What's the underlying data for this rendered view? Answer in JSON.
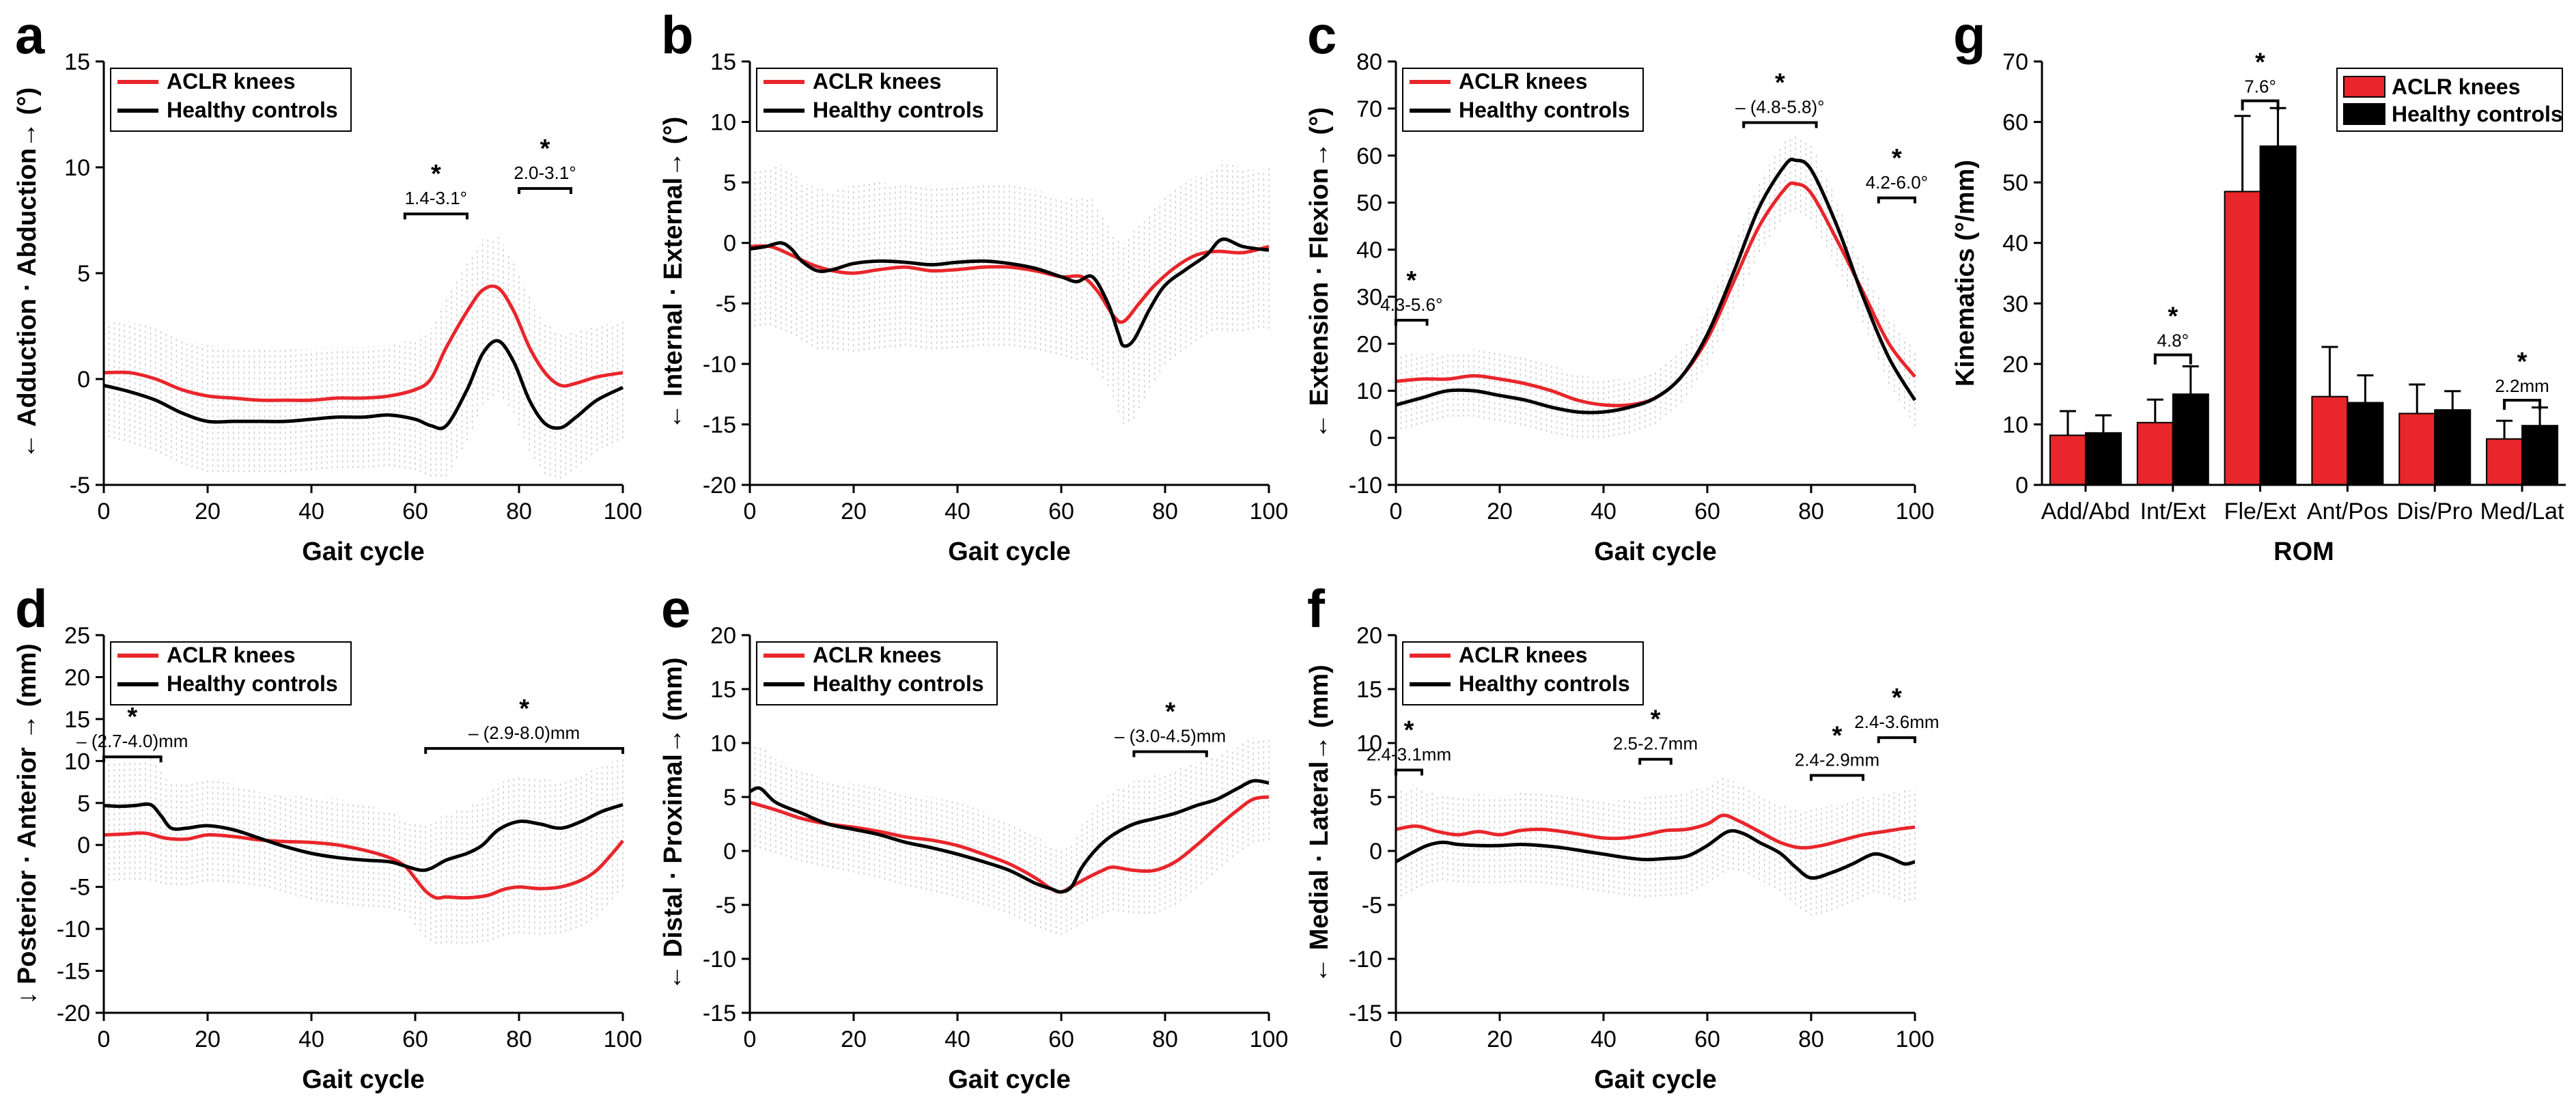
{
  "figure": {
    "series_legend": [
      "ACLR knees",
      "Healthy controls"
    ],
    "colors": {
      "aclr": "#e8262b",
      "hc": "#000000",
      "band": "#c9c9c9"
    }
  },
  "chart_data": [
    {
      "id": "a",
      "panel_label": "a",
      "type": "line",
      "xlabel": "Gait cycle",
      "ylabel": "← Adduction · Abduction→ (°)",
      "xlim": [
        0,
        100
      ],
      "ylim": [
        -5,
        15
      ],
      "xticks": [
        0,
        20,
        40,
        60,
        80,
        100
      ],
      "yticks": [
        -5,
        0,
        5,
        10,
        15
      ],
      "band_sd": 2.4,
      "series": [
        {
          "name": "ACLR knees",
          "x": [
            0,
            5,
            10,
            15,
            20,
            25,
            30,
            35,
            40,
            45,
            50,
            55,
            60,
            63,
            66,
            70,
            73,
            76,
            79,
            82,
            85,
            88,
            91,
            95,
            100
          ],
          "y": [
            0.3,
            0.3,
            0,
            -0.5,
            -0.8,
            -0.9,
            -1.0,
            -1.0,
            -1.0,
            -0.9,
            -0.9,
            -0.8,
            -0.5,
            0,
            1.5,
            3.2,
            4.2,
            4.3,
            3.2,
            1.5,
            0.3,
            -0.3,
            -0.2,
            0.1,
            0.3
          ]
        },
        {
          "name": "Healthy controls",
          "x": [
            0,
            5,
            10,
            15,
            20,
            25,
            30,
            35,
            40,
            45,
            50,
            55,
            60,
            63,
            66,
            70,
            73,
            76,
            79,
            82,
            85,
            88,
            91,
            95,
            100
          ],
          "y": [
            -0.3,
            -0.6,
            -1.0,
            -1.6,
            -2.0,
            -2.0,
            -2.0,
            -2.0,
            -1.9,
            -1.8,
            -1.8,
            -1.7,
            -1.9,
            -2.2,
            -2.2,
            -0.5,
            1.2,
            1.8,
            0.8,
            -1.0,
            -2.1,
            -2.3,
            -1.8,
            -1.0,
            -0.4
          ]
        }
      ],
      "annotations": [
        {
          "star": "*",
          "label": "1.4-3.1°",
          "x0": 58,
          "x1": 70,
          "y": 7.8
        },
        {
          "star": "*",
          "label": "2.0-3.1°",
          "x0": 80,
          "x1": 90,
          "y": 9.0
        }
      ]
    },
    {
      "id": "b",
      "panel_label": "b",
      "type": "line",
      "xlabel": "Gait cycle",
      "ylabel": "← Internal · External→ (°)",
      "xlim": [
        0,
        100
      ],
      "ylim": [
        -20,
        15
      ],
      "xticks": [
        0,
        20,
        40,
        60,
        80,
        100
      ],
      "yticks": [
        -20,
        -15,
        -10,
        -5,
        0,
        5,
        10,
        15
      ],
      "band_sd": 6.5,
      "series": [
        {
          "name": "ACLR knees",
          "x": [
            0,
            4,
            8,
            12,
            16,
            20,
            25,
            30,
            35,
            40,
            45,
            50,
            55,
            60,
            64,
            67,
            70,
            72,
            75,
            78,
            82,
            86,
            90,
            95,
            100
          ],
          "y": [
            -0.3,
            -0.3,
            -1.0,
            -1.8,
            -2.3,
            -2.5,
            -2.2,
            -2.0,
            -2.3,
            -2.2,
            -2.0,
            -2.0,
            -2.3,
            -2.8,
            -2.8,
            -4.0,
            -6.0,
            -6.5,
            -5.0,
            -3.5,
            -2.0,
            -1.0,
            -0.7,
            -0.8,
            -0.3
          ]
        },
        {
          "name": "Healthy controls",
          "x": [
            0,
            3,
            6,
            8,
            10,
            13,
            16,
            20,
            25,
            30,
            35,
            40,
            45,
            50,
            55,
            60,
            63,
            66,
            69,
            71,
            72,
            74,
            77,
            80,
            84,
            88,
            91,
            95,
            100
          ],
          "y": [
            -0.5,
            -0.3,
            0,
            -0.5,
            -1.5,
            -2.3,
            -2.2,
            -1.7,
            -1.5,
            -1.6,
            -1.8,
            -1.6,
            -1.5,
            -1.7,
            -2.1,
            -2.8,
            -3.2,
            -2.8,
            -5.0,
            -7.5,
            -8.5,
            -8.0,
            -5.5,
            -3.5,
            -2.2,
            -1.0,
            0.3,
            -0.3,
            -0.6
          ]
        }
      ],
      "annotations": []
    },
    {
      "id": "c",
      "panel_label": "c",
      "type": "line",
      "xlabel": "Gait cycle",
      "ylabel": "← Extension · Flexion→ (°)",
      "xlim": [
        0,
        100
      ],
      "ylim": [
        -10,
        80
      ],
      "xticks": [
        0,
        20,
        40,
        60,
        80,
        100
      ],
      "yticks": [
        -10,
        0,
        10,
        20,
        30,
        40,
        50,
        60,
        70,
        80
      ],
      "band_sd": 5.5,
      "series": [
        {
          "name": "ACLR knees",
          "x": [
            0,
            5,
            10,
            15,
            20,
            25,
            30,
            35,
            40,
            45,
            50,
            55,
            60,
            65,
            70,
            75,
            77,
            80,
            85,
            90,
            95,
            100
          ],
          "y": [
            12,
            12.5,
            12.5,
            13.2,
            12.5,
            11.5,
            10,
            8,
            7,
            7,
            8.5,
            13,
            21,
            33,
            45,
            53,
            54,
            52,
            42,
            31,
            20,
            13
          ]
        },
        {
          "name": "Healthy controls",
          "x": [
            0,
            5,
            10,
            15,
            20,
            25,
            30,
            35,
            40,
            45,
            50,
            55,
            60,
            65,
            70,
            75,
            77,
            80,
            85,
            90,
            95,
            100
          ],
          "y": [
            7,
            8.5,
            10,
            10,
            9,
            8,
            6.5,
            5.5,
            5.5,
            6.5,
            8.5,
            13,
            22,
            35,
            49,
            58,
            59,
            57,
            45,
            30,
            17,
            8
          ]
        }
      ],
      "annotations": [
        {
          "star": "*",
          "label": "4.3-5.6°",
          "x0": 0,
          "x1": 6,
          "y": 25
        },
        {
          "star": "*",
          "label": "– (4.8-5.8)°",
          "x0": 67,
          "x1": 81,
          "y": 67
        },
        {
          "star": "*",
          "label": "4.2-6.0°",
          "x0": 93,
          "x1": 100,
          "y": 51
        }
      ]
    },
    {
      "id": "d",
      "panel_label": "d",
      "type": "line",
      "xlabel": "Gait cycle",
      "ylabel": "↓ Posterior · Anterior → (mm)",
      "xlim": [
        0,
        100
      ],
      "ylim": [
        -20,
        25
      ],
      "xticks": [
        0,
        20,
        40,
        60,
        80,
        100
      ],
      "yticks": [
        -20,
        -15,
        -10,
        -5,
        0,
        5,
        10,
        15,
        20,
        25
      ],
      "band_sd": 5.5,
      "series": [
        {
          "name": "ACLR knees",
          "x": [
            0,
            4,
            8,
            12,
            16,
            20,
            25,
            30,
            35,
            40,
            45,
            50,
            55,
            58,
            60,
            62,
            64,
            66,
            70,
            74,
            77,
            80,
            84,
            88,
            92,
            95,
            98,
            100
          ],
          "y": [
            1.2,
            1.3,
            1.4,
            0.8,
            0.7,
            1.2,
            1.0,
            0.6,
            0.4,
            0.3,
            0,
            -0.6,
            -1.5,
            -2.5,
            -4.0,
            -5.5,
            -6.3,
            -6.2,
            -6.3,
            -6.0,
            -5.3,
            -5.0,
            -5.2,
            -5.0,
            -4.2,
            -3.0,
            -1.0,
            0.5
          ]
        },
        {
          "name": "Healthy controls",
          "x": [
            0,
            3,
            6,
            9,
            11,
            13,
            16,
            20,
            25,
            30,
            35,
            40,
            45,
            50,
            55,
            58,
            61,
            63,
            66,
            70,
            73,
            76,
            80,
            84,
            88,
            92,
            96,
            100
          ],
          "y": [
            4.7,
            4.6,
            4.7,
            4.8,
            3.5,
            2.0,
            2.0,
            2.3,
            1.8,
            0.8,
            -0.2,
            -1.0,
            -1.5,
            -1.8,
            -2.0,
            -2.5,
            -3.0,
            -2.8,
            -1.8,
            -1.0,
            0,
            1.8,
            2.8,
            2.5,
            2.0,
            2.8,
            4.0,
            4.8
          ]
        }
      ],
      "annotations": [
        {
          "star": "*",
          "label": "– (2.7-4.0)mm",
          "x0": 0,
          "x1": 11,
          "y": 10.5
        },
        {
          "star": "*",
          "label": "– (2.9-8.0)mm",
          "x0": 62,
          "x1": 100,
          "y": 11.5
        }
      ]
    },
    {
      "id": "e",
      "panel_label": "e",
      "type": "line",
      "xlabel": "Gait cycle",
      "ylabel": "← Distal · Proximal→ (mm)",
      "xlim": [
        0,
        100
      ],
      "ylim": [
        -15,
        20
      ],
      "xticks": [
        0,
        20,
        40,
        60,
        80,
        100
      ],
      "yticks": [
        -15,
        -10,
        -5,
        0,
        5,
        10,
        15,
        20
      ],
      "band_sd": 4.0,
      "series": [
        {
          "name": "ACLR knees",
          "x": [
            0,
            5,
            10,
            15,
            20,
            25,
            30,
            35,
            40,
            45,
            50,
            55,
            58,
            60,
            62,
            65,
            68,
            70,
            74,
            78,
            82,
            86,
            90,
            94,
            97,
            100
          ],
          "y": [
            4.5,
            3.8,
            3.0,
            2.5,
            2.2,
            1.8,
            1.3,
            1.0,
            0.5,
            -0.3,
            -1.2,
            -2.5,
            -3.5,
            -3.8,
            -3.3,
            -2.5,
            -1.8,
            -1.5,
            -1.8,
            -1.8,
            -1.0,
            0.5,
            2.2,
            3.8,
            4.8,
            5.0
          ]
        },
        {
          "name": "Healthy controls",
          "x": [
            0,
            2,
            5,
            10,
            15,
            20,
            25,
            30,
            35,
            40,
            45,
            50,
            55,
            58,
            60,
            62,
            64,
            67,
            70,
            74,
            78,
            82,
            86,
            90,
            94,
            97,
            100
          ],
          "y": [
            5.5,
            5.8,
            4.5,
            3.5,
            2.5,
            2.0,
            1.5,
            0.8,
            0.3,
            -0.3,
            -1.0,
            -1.8,
            -3.0,
            -3.5,
            -3.8,
            -3.3,
            -1.5,
            0.3,
            1.5,
            2.5,
            3.0,
            3.5,
            4.2,
            4.8,
            5.8,
            6.5,
            6.3
          ]
        }
      ],
      "annotations": [
        {
          "star": "*",
          "label": "– (3.0-4.5)mm",
          "x0": 74,
          "x1": 88,
          "y": 9.2
        }
      ]
    },
    {
      "id": "f",
      "panel_label": "f",
      "type": "line",
      "xlabel": "Gait cycle",
      "ylabel": "← Medial · Lateral→ (mm)",
      "xlim": [
        0,
        100
      ],
      "ylim": [
        -15,
        20
      ],
      "xticks": [
        0,
        20,
        40,
        60,
        80,
        100
      ],
      "yticks": [
        -15,
        -10,
        -5,
        0,
        5,
        10,
        15,
        20
      ],
      "band_sd": 3.5,
      "series": [
        {
          "name": "ACLR knees",
          "x": [
            0,
            4,
            8,
            12,
            16,
            20,
            24,
            28,
            32,
            36,
            40,
            44,
            48,
            52,
            56,
            60,
            63,
            66,
            70,
            74,
            78,
            82,
            86,
            90,
            94,
            98,
            100
          ],
          "y": [
            2.0,
            2.3,
            1.8,
            1.5,
            1.8,
            1.5,
            1.9,
            2.0,
            1.8,
            1.5,
            1.2,
            1.2,
            1.5,
            1.9,
            2.0,
            2.5,
            3.3,
            2.8,
            1.8,
            0.8,
            0.3,
            0.5,
            1.0,
            1.5,
            1.8,
            2.1,
            2.2
          ]
        },
        {
          "name": "Healthy controls",
          "x": [
            0,
            3,
            6,
            9,
            12,
            16,
            20,
            24,
            28,
            32,
            36,
            40,
            44,
            48,
            52,
            56,
            60,
            64,
            67,
            70,
            74,
            77,
            80,
            84,
            88,
            92,
            95,
            98,
            100
          ],
          "y": [
            -1.0,
            -0.2,
            0.5,
            0.8,
            0.6,
            0.5,
            0.5,
            0.6,
            0.5,
            0.3,
            0,
            -0.3,
            -0.6,
            -0.8,
            -0.7,
            -0.5,
            0.5,
            1.8,
            1.6,
            0.8,
            -0.2,
            -1.5,
            -2.5,
            -2.0,
            -1.2,
            -0.3,
            -0.6,
            -1.2,
            -1.0
          ]
        }
      ],
      "annotations": [
        {
          "star": "*",
          "label": "2.4-3.1mm",
          "x0": 0,
          "x1": 5,
          "y": 7.5
        },
        {
          "star": "*",
          "label": "2.5-2.7mm",
          "x0": 47,
          "x1": 53,
          "y": 8.5
        },
        {
          "star": "*",
          "label": "2.4-2.9mm",
          "x0": 80,
          "x1": 90,
          "y": 7.0
        },
        {
          "star": "*",
          "label": "2.4-3.6mm",
          "x0": 93,
          "x1": 100,
          "y": 10.5
        }
      ]
    },
    {
      "id": "g",
      "panel_label": "g",
      "type": "bar",
      "xlabel": "ROM",
      "ylabel": "Kinematics (°/mm)",
      "ylim": [
        0,
        70
      ],
      "yticks": [
        0,
        10,
        20,
        30,
        40,
        50,
        60,
        70
      ],
      "categories": [
        "Add/Abd",
        "Int/Ext",
        "Fle/Ext",
        "Ant/Pos",
        "Dis/Pro",
        "Med/Lat"
      ],
      "series": [
        {
          "name": "ACLR knees",
          "values": [
            8.2,
            10.3,
            48.5,
            14.6,
            11.8,
            7.6
          ],
          "errors": [
            4.0,
            3.8,
            12.5,
            8.2,
            4.8,
            3.0
          ]
        },
        {
          "name": "Healthy controls",
          "values": [
            8.6,
            15.0,
            56.0,
            13.6,
            12.4,
            9.8
          ],
          "errors": [
            2.9,
            4.6,
            6.3,
            4.5,
            3.1,
            3.0
          ]
        }
      ],
      "annotations": [
        {
          "star": "*",
          "label": "4.8°",
          "category_index": 1,
          "y": 21.5
        },
        {
          "star": "*",
          "label": "7.6°",
          "category_index": 2,
          "y": 63.5
        },
        {
          "star": "*",
          "label": "2.2mm",
          "category_index": 5,
          "y": 14.0
        }
      ]
    }
  ]
}
